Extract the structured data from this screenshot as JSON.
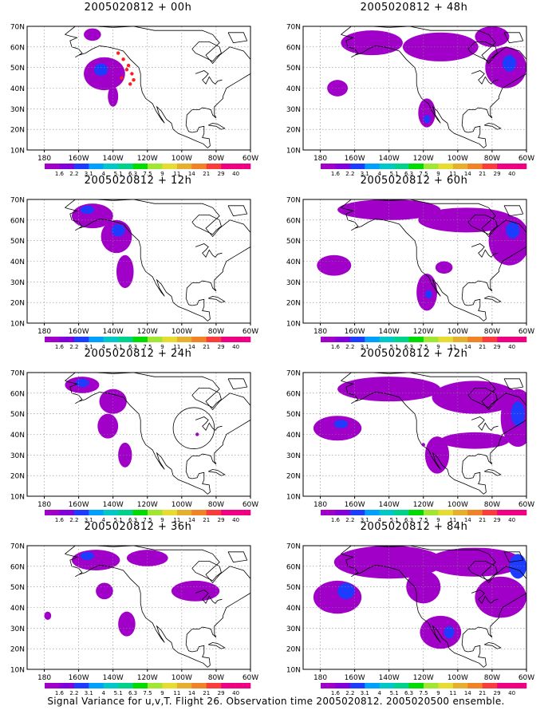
{
  "figure": {
    "caption": "Signal Variance for u,v,T. Flight 26. Observation time 2005020812. 2005020500 ensemble."
  },
  "axes": {
    "lat_labels": [
      "70N",
      "60N",
      "50N",
      "40N",
      "30N",
      "20N",
      "10N"
    ],
    "lon_labels": [
      "180",
      "160W",
      "140W",
      "120W",
      "100W",
      "80W",
      "60W"
    ]
  },
  "colorbar": {
    "labels": [
      "1.6",
      "2.2",
      "3.1",
      "4",
      "5.1",
      "6.3",
      "7.5",
      "9",
      "11",
      "14",
      "21",
      "29",
      "40"
    ],
    "colors": [
      "#a000c8",
      "#8200dc",
      "#1e3cff",
      "#00a0ff",
      "#00c8c8",
      "#00d28c",
      "#00dc00",
      "#a0e632",
      "#e6dc32",
      "#e6af2d",
      "#f08228",
      "#fa3c3c",
      "#f00082"
    ]
  },
  "map_style": {
    "fill_color": "#a000c8",
    "inner_color": "#1e3cff",
    "coast_color": "#000000",
    "grid_color": "#888888"
  },
  "panels": [
    {
      "title": "2005020812 + 00h",
      "blobs": [
        [
          -145,
          47,
          12,
          8
        ],
        [
          -152,
          66,
          5,
          3
        ],
        [
          -140,
          36,
          3,
          5
        ]
      ],
      "inner": [
        [
          -147,
          49,
          4,
          3
        ]
      ],
      "dots": [
        [
          -137,
          57
        ],
        [
          -134,
          54
        ],
        [
          -131,
          51
        ],
        [
          -129,
          47
        ],
        [
          -128,
          44
        ],
        [
          -130,
          42
        ],
        [
          -132,
          49
        ],
        [
          -135,
          45
        ]
      ],
      "circle": null
    },
    {
      "title": "2005020812 + 48h",
      "blobs": [
        [
          -150,
          62,
          18,
          6
        ],
        [
          -110,
          60,
          22,
          7
        ],
        [
          -72,
          50,
          12,
          10
        ],
        [
          -170,
          40,
          6,
          4
        ],
        [
          -118,
          28,
          5,
          7
        ],
        [
          -80,
          65,
          10,
          5
        ]
      ],
      "inner": [
        [
          -70,
          52,
          4,
          4
        ],
        [
          -118,
          25,
          2,
          2
        ]
      ],
      "dots": [],
      "circle": null
    },
    {
      "title": "2005020812 + 12h",
      "blobs": [
        [
          -152,
          62,
          12,
          6
        ],
        [
          -138,
          52,
          9,
          8
        ],
        [
          -133,
          35,
          5,
          8
        ]
      ],
      "inner": [
        [
          -155,
          65,
          4,
          2
        ],
        [
          -137,
          55,
          4,
          3
        ]
      ],
      "dots": [],
      "circle": null
    },
    {
      "title": "2005020812 + 60h",
      "blobs": [
        [
          -140,
          65,
          30,
          5
        ],
        [
          -95,
          60,
          28,
          6
        ],
        [
          -70,
          50,
          12,
          12
        ],
        [
          -172,
          38,
          10,
          5
        ],
        [
          -118,
          25,
          6,
          9
        ],
        [
          -108,
          37,
          5,
          3
        ]
      ],
      "inner": [
        [
          -68,
          55,
          4,
          4
        ],
        [
          -117,
          24,
          2,
          2
        ]
      ],
      "dots": [],
      "circle": null
    },
    {
      "title": "2005020812 + 24h",
      "blobs": [
        [
          -158,
          64,
          10,
          4
        ],
        [
          -140,
          56,
          8,
          6
        ],
        [
          -143,
          44,
          6,
          6
        ],
        [
          -133,
          30,
          4,
          6
        ]
      ],
      "inner": [
        [
          -158,
          65,
          4,
          2
        ]
      ],
      "dots": [
        [
          -91,
          40
        ]
      ],
      "circle": [
        -93,
        43,
        10
      ]
    },
    {
      "title": "2005020812 + 72h",
      "blobs": [
        [
          -140,
          62,
          30,
          6
        ],
        [
          -90,
          58,
          25,
          8
        ],
        [
          -65,
          48,
          10,
          14
        ],
        [
          -170,
          43,
          14,
          6
        ],
        [
          -112,
          30,
          7,
          9
        ],
        [
          -90,
          37,
          20,
          4
        ]
      ],
      "inner": [
        [
          -65,
          50,
          4,
          6
        ],
        [
          -168,
          45,
          4,
          2
        ]
      ],
      "dots": [
        [
          -120,
          35
        ]
      ],
      "circle": null
    },
    {
      "title": "2005020812 + 36h",
      "blobs": [
        [
          -150,
          63,
          14,
          5
        ],
        [
          -120,
          64,
          12,
          4
        ],
        [
          -145,
          48,
          5,
          4
        ],
        [
          -92,
          48,
          14,
          5
        ],
        [
          -132,
          32,
          5,
          6
        ],
        [
          -178,
          36,
          2,
          2
        ]
      ],
      "inner": [
        [
          -155,
          65,
          4,
          2
        ]
      ],
      "dots": [],
      "circle": null
    },
    {
      "title": "2005020812 + 84h",
      "blobs": [
        [
          -140,
          62,
          32,
          8
        ],
        [
          -90,
          62,
          28,
          7
        ],
        [
          -170,
          45,
          14,
          8
        ],
        [
          -110,
          28,
          12,
          8
        ],
        [
          -75,
          45,
          15,
          10
        ],
        [
          -120,
          50,
          10,
          8
        ]
      ],
      "inner": [
        [
          -65,
          60,
          5,
          6
        ],
        [
          -165,
          48,
          5,
          4
        ],
        [
          -105,
          28,
          3,
          3
        ]
      ],
      "dots": [],
      "circle": null
    }
  ]
}
